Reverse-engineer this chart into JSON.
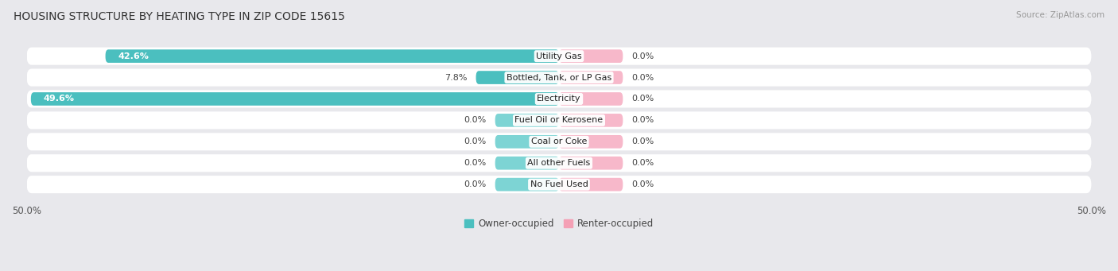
{
  "title": "HOUSING STRUCTURE BY HEATING TYPE IN ZIP CODE 15615",
  "source": "Source: ZipAtlas.com",
  "categories": [
    "Utility Gas",
    "Bottled, Tank, or LP Gas",
    "Electricity",
    "Fuel Oil or Kerosene",
    "Coal or Coke",
    "All other Fuels",
    "No Fuel Used"
  ],
  "owner_values": [
    42.6,
    7.8,
    49.6,
    0.0,
    0.0,
    0.0,
    0.0
  ],
  "renter_values": [
    0.0,
    0.0,
    0.0,
    0.0,
    0.0,
    0.0,
    0.0
  ],
  "owner_color": "#4bbfbf",
  "renter_color": "#f4a0b5",
  "owner_stub_color": "#7dd4d4",
  "renter_stub_color": "#f7b8ca",
  "background_color": "#e8e8ec",
  "row_bg_color": "#ffffff",
  "title_fontsize": 10,
  "source_fontsize": 7.5,
  "label_fontsize": 8,
  "axis_min": -50.0,
  "axis_max": 50.0,
  "stub_size": 6.0,
  "axis_tick_labels": [
    "50.0%",
    "50.0%"
  ]
}
